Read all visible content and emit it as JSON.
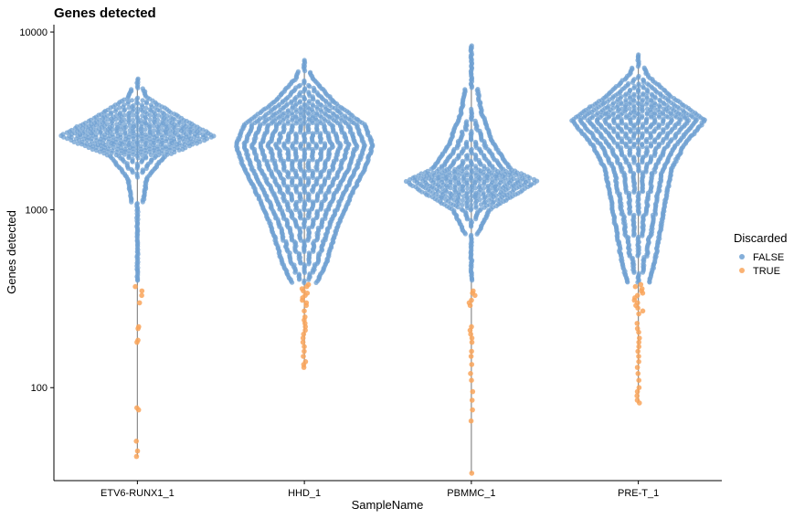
{
  "chart_data": {
    "type": "scatter",
    "subtype": "violin-beeswarm",
    "title": "Genes detected",
    "xlabel": "SampleName",
    "ylabel": "Genes detected",
    "yscale": "log10",
    "ylim": [
      30,
      11000
    ],
    "yticks": [
      100,
      1000,
      10000
    ],
    "ytick_labels": [
      "100",
      "1000",
      "10000"
    ],
    "categories": [
      "ETV6-RUNX1_1",
      "HHD_1",
      "PBMMC_1",
      "PRE-T_1"
    ],
    "legend": {
      "title": "Discarded",
      "position": "right",
      "entries": [
        {
          "label": "FALSE",
          "color": "#6fa0d2"
        },
        {
          "label": "TRUE",
          "color": "#f9a45a"
        }
      ]
    },
    "grid": false,
    "samples": [
      {
        "name": "ETV6-RUNX1_1",
        "min_kept": 400,
        "max": 5500,
        "mode": 2600,
        "shape": [
          [
            400,
            0.02
          ],
          [
            700,
            0.04
          ],
          [
            1000,
            0.06
          ],
          [
            1500,
            0.12
          ],
          [
            2000,
            0.35
          ],
          [
            2600,
            1.0
          ],
          [
            3300,
            0.55
          ],
          [
            4300,
            0.12
          ],
          [
            5500,
            0.02
          ]
        ],
        "half_width": 0.92,
        "discarded": [
          370,
          350,
          330,
          300,
          220,
          215,
          185,
          180,
          77,
          75,
          50,
          44,
          41
        ]
      },
      {
        "name": "HHD_1",
        "min_kept": 390,
        "max": 7000,
        "mode": 2300,
        "shape": [
          [
            390,
            0.18
          ],
          [
            500,
            0.32
          ],
          [
            800,
            0.48
          ],
          [
            1200,
            0.68
          ],
          [
            1700,
            0.88
          ],
          [
            2300,
            1.0
          ],
          [
            3000,
            0.88
          ],
          [
            4000,
            0.45
          ],
          [
            5500,
            0.12
          ],
          [
            7000,
            0.02
          ]
        ],
        "half_width": 0.82,
        "discarded": [
          380,
          370,
          360,
          350,
          340,
          330,
          320,
          310,
          300,
          290,
          270,
          250,
          240,
          230,
          220,
          210,
          200,
          190,
          180,
          170,
          160,
          150,
          140,
          135,
          130
        ]
      },
      {
        "name": "PBMMC_1",
        "min_kept": 400,
        "max": 8500,
        "mode": 1450,
        "shape": [
          [
            400,
            0.03
          ],
          [
            700,
            0.07
          ],
          [
            1000,
            0.28
          ],
          [
            1300,
            0.8
          ],
          [
            1450,
            1.0
          ],
          [
            1700,
            0.6
          ],
          [
            2300,
            0.35
          ],
          [
            3500,
            0.16
          ],
          [
            5500,
            0.06
          ],
          [
            8500,
            0.02
          ]
        ],
        "half_width": 0.78,
        "discarded": [
          350,
          340,
          330,
          310,
          300,
          290,
          220,
          210,
          200,
          190,
          180,
          160,
          150,
          135,
          120,
          110,
          95,
          85,
          75,
          65,
          33
        ]
      },
      {
        "name": "PRE-T_1",
        "min_kept": 390,
        "max": 7600,
        "mode": 3200,
        "shape": [
          [
            390,
            0.16
          ],
          [
            500,
            0.24
          ],
          [
            800,
            0.34
          ],
          [
            1200,
            0.42
          ],
          [
            1700,
            0.5
          ],
          [
            2300,
            0.68
          ],
          [
            3200,
            1.0
          ],
          [
            4300,
            0.5
          ],
          [
            5800,
            0.12
          ],
          [
            7600,
            0.02
          ]
        ],
        "half_width": 0.8,
        "discarded": [
          380,
          370,
          360,
          350,
          340,
          330,
          320,
          310,
          300,
          290,
          280,
          270,
          260,
          230,
          215,
          205,
          190,
          180,
          170,
          160,
          150,
          140,
          130,
          120,
          110,
          100,
          95,
          90,
          85,
          82
        ]
      }
    ]
  }
}
